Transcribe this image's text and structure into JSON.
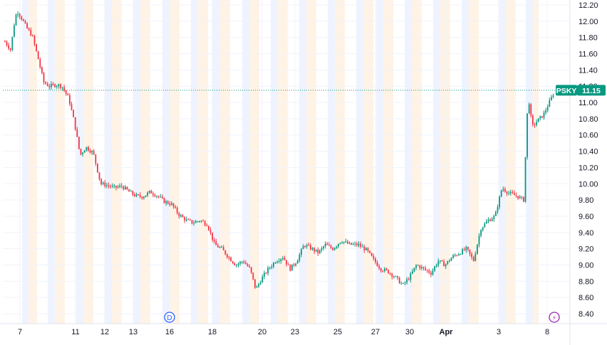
{
  "chart_data": {
    "type": "candlestick",
    "symbol": "PSKY",
    "last_price": "11.15",
    "y_axis_ticks": [
      "8.40",
      "8.60",
      "8.80",
      "9.00",
      "9.20",
      "9.40",
      "9.60",
      "9.80",
      "10.00",
      "10.20",
      "10.40",
      "10.60",
      "10.80",
      "11.00",
      "11.20",
      "11.40",
      "11.60",
      "11.80",
      "12.00",
      "12.20"
    ],
    "ylim": [
      8.34,
      12.25
    ],
    "x_axis_labels": [
      "7",
      "11",
      "12",
      "13",
      "16",
      "18",
      "20",
      "23",
      "25",
      "27",
      "30",
      "Apr",
      "3",
      "8"
    ],
    "grid": true,
    "session_shading": true,
    "up_color": "#089981",
    "down_color": "#f23645",
    "last_price_color": "#089981",
    "markers": [
      {
        "label": "D",
        "type": "dividend",
        "color": "#2962ff"
      },
      {
        "label": "⚡",
        "type": "event",
        "color": "#9c27b0"
      }
    ],
    "price_path": [
      [
        0.0,
        11.75
      ],
      [
        0.01,
        11.65
      ],
      [
        0.018,
        12.05
      ],
      [
        0.022,
        12.12
      ],
      [
        0.03,
        12.03
      ],
      [
        0.038,
        11.92
      ],
      [
        0.048,
        11.82
      ],
      [
        0.058,
        11.55
      ],
      [
        0.068,
        11.25
      ],
      [
        0.078,
        11.2
      ],
      [
        0.09,
        11.22
      ],
      [
        0.1,
        11.2
      ],
      [
        0.112,
        11.05
      ],
      [
        0.122,
        10.75
      ],
      [
        0.132,
        10.35
      ],
      [
        0.142,
        10.45
      ],
      [
        0.155,
        10.38
      ],
      [
        0.168,
        10.0
      ],
      [
        0.18,
        9.98
      ],
      [
        0.192,
        9.95
      ],
      [
        0.205,
        9.97
      ],
      [
        0.218,
        9.9
      ],
      [
        0.23,
        9.85
      ],
      [
        0.242,
        9.84
      ],
      [
        0.255,
        9.9
      ],
      [
        0.268,
        9.85
      ],
      [
        0.28,
        9.78
      ],
      [
        0.292,
        9.75
      ],
      [
        0.305,
        9.62
      ],
      [
        0.318,
        9.55
      ],
      [
        0.33,
        9.52
      ],
      [
        0.342,
        9.55
      ],
      [
        0.355,
        9.5
      ],
      [
        0.368,
        9.25
      ],
      [
        0.38,
        9.2
      ],
      [
        0.392,
        9.1
      ],
      [
        0.405,
        9.0
      ],
      [
        0.418,
        9.05
      ],
      [
        0.43,
        8.95
      ],
      [
        0.44,
        8.7
      ],
      [
        0.452,
        8.85
      ],
      [
        0.462,
        8.95
      ],
      [
        0.475,
        9.05
      ],
      [
        0.488,
        9.1
      ],
      [
        0.5,
        8.95
      ],
      [
        0.512,
        9.05
      ],
      [
        0.525,
        9.25
      ],
      [
        0.538,
        9.2
      ],
      [
        0.55,
        9.15
      ],
      [
        0.562,
        9.25
      ],
      [
        0.575,
        9.2
      ],
      [
        0.59,
        9.3
      ],
      [
        0.605,
        9.25
      ],
      [
        0.62,
        9.25
      ],
      [
        0.635,
        9.18
      ],
      [
        0.648,
        9.05
      ],
      [
        0.66,
        8.95
      ],
      [
        0.672,
        8.92
      ],
      [
        0.685,
        8.85
      ],
      [
        0.698,
        8.75
      ],
      [
        0.71,
        8.85
      ],
      [
        0.722,
        9.0
      ],
      [
        0.735,
        8.95
      ],
      [
        0.748,
        8.9
      ],
      [
        0.76,
        9.05
      ],
      [
        0.772,
        9.0
      ],
      [
        0.785,
        9.1
      ],
      [
        0.798,
        9.15
      ],
      [
        0.81,
        9.2
      ],
      [
        0.822,
        9.05
      ],
      [
        0.835,
        9.45
      ],
      [
        0.848,
        9.55
      ],
      [
        0.86,
        9.6
      ],
      [
        0.872,
        9.95
      ],
      [
        0.885,
        9.88
      ],
      [
        0.898,
        9.85
      ],
      [
        0.91,
        9.8
      ],
      [
        0.918,
        11.1
      ],
      [
        0.925,
        10.7
      ],
      [
        0.935,
        10.78
      ],
      [
        0.945,
        10.85
      ],
      [
        0.955,
        11.0
      ],
      [
        0.965,
        11.15
      ]
    ]
  }
}
